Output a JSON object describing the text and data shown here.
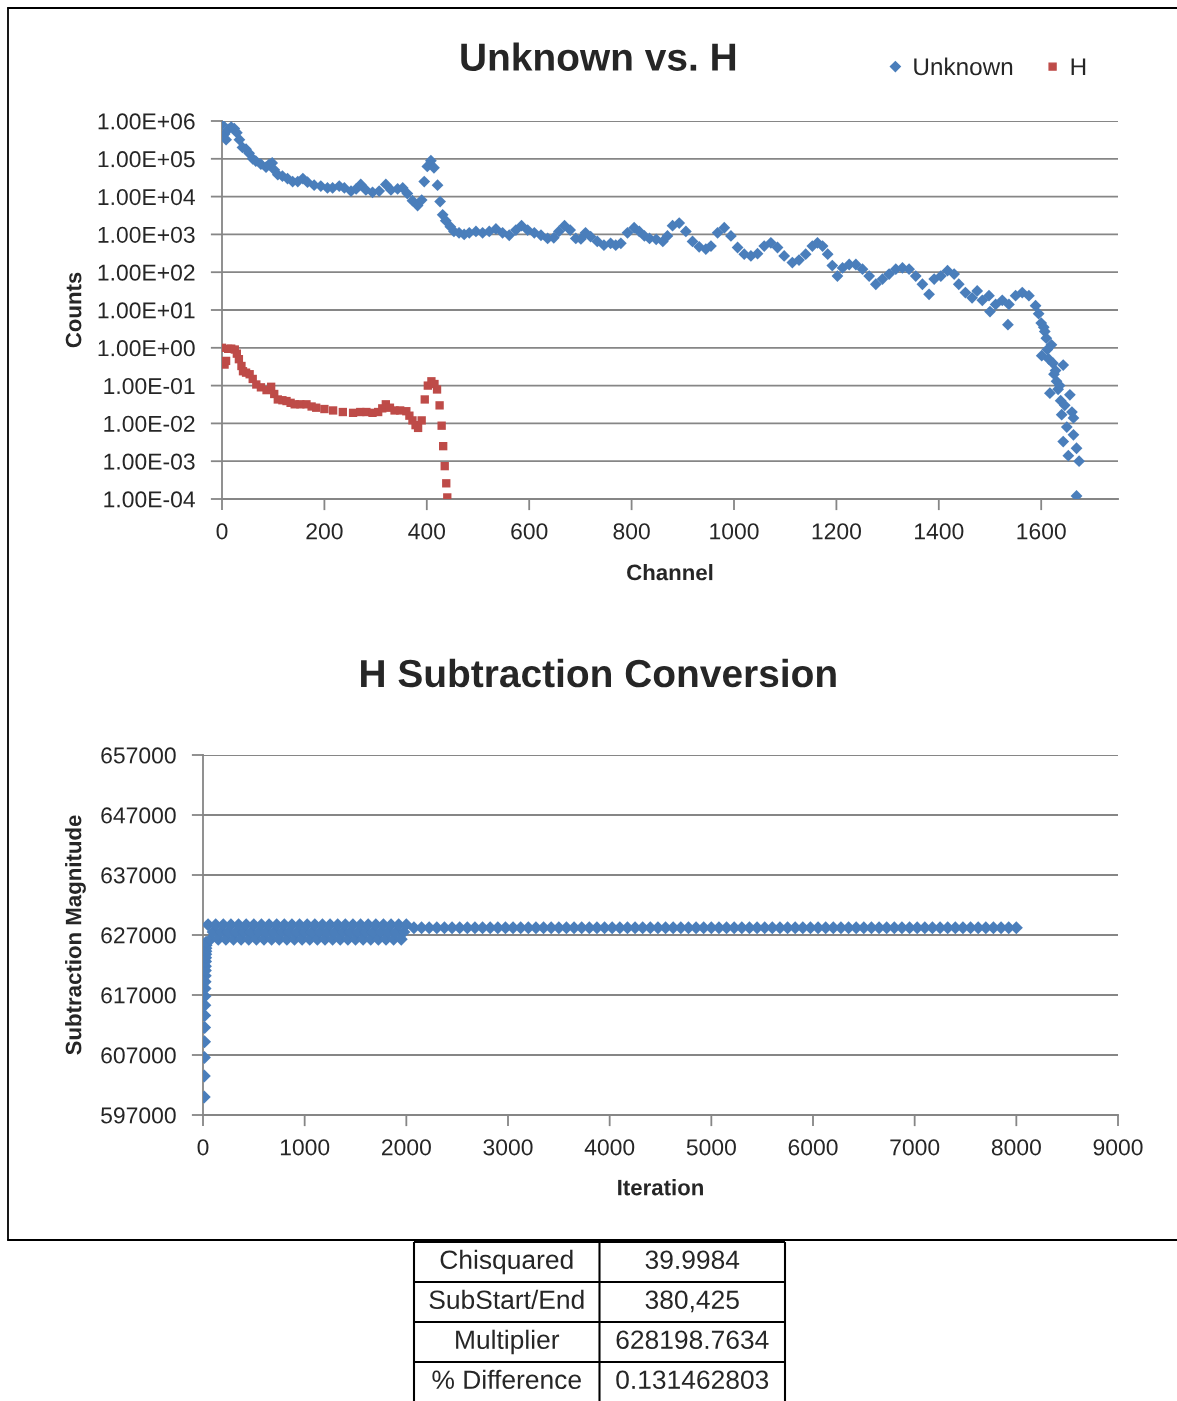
{
  "chart_data": [
    {
      "type": "scatter",
      "title": "Unknown vs. H",
      "xlabel": "Channel",
      "ylabel": "Counts",
      "log": "y",
      "grid": "y",
      "legend": "top right",
      "xlim": [
        0,
        1750
      ],
      "xticks": [
        0,
        200,
        400,
        600,
        800,
        1000,
        1200,
        1400,
        1600
      ],
      "ylim": [
        0.0001,
        1000000
      ],
      "yticks": [
        {
          "value": 1000000,
          "label": "1.00E+06"
        },
        {
          "value": 100000,
          "label": "1.00E+05"
        },
        {
          "value": 10000,
          "label": "1.00E+04"
        },
        {
          "value": 1000,
          "label": "1.00E+03"
        },
        {
          "value": 100,
          "label": "1.00E+02"
        },
        {
          "value": 10,
          "label": "1.00E+01"
        },
        {
          "value": 1,
          "label": "1.00E+00"
        },
        {
          "value": 0.1,
          "label": "1.00E-01"
        },
        {
          "value": 0.01,
          "label": "1.00E-02"
        },
        {
          "value": 0.001,
          "label": "1.00E-03"
        },
        {
          "value": 0.0001,
          "label": "1.00E-04"
        }
      ],
      "series": [
        {
          "name": "Unknown",
          "color": "#4a7ebb",
          "marker": "diamond",
          "x": [
            0,
            5,
            8,
            12,
            18,
            24,
            29,
            34,
            40,
            47,
            53,
            60,
            66,
            76,
            86,
            92,
            98,
            102,
            109,
            118,
            128,
            138,
            148,
            158,
            167,
            180,
            193,
            206,
            216,
            229,
            239,
            252,
            262,
            271,
            281,
            294,
            307,
            320,
            330,
            343,
            353,
            362,
            372,
            382,
            390,
            395,
            401,
            408,
            414,
            421,
            426,
            431,
            437,
            446,
            453,
            463,
            473,
            483,
            496,
            509,
            522,
            535,
            548,
            561,
            574,
            585,
            597,
            610,
            623,
            636,
            648,
            658,
            669,
            680,
            691,
            701,
            710,
            720,
            733,
            746,
            759,
            769,
            779,
            792,
            805,
            815,
            825,
            835,
            848,
            861,
            870,
            880,
            893,
            906,
            919,
            932,
            945,
            955,
            968,
            981,
            994,
            1007,
            1020,
            1033,
            1046,
            1059,
            1072,
            1085,
            1098,
            1114,
            1127,
            1140,
            1153,
            1163,
            1173,
            1183,
            1192,
            1202,
            1212,
            1225,
            1238,
            1251,
            1264,
            1277,
            1290,
            1303,
            1316,
            1329,
            1342,
            1355,
            1368,
            1381,
            1391,
            1404,
            1417,
            1430,
            1439,
            1452,
            1465,
            1475,
            1485,
            1498,
            1500,
            1511,
            1524,
            1535,
            1537,
            1550,
            1563,
            1576,
            1589,
            1595,
            1600,
            1601,
            1605,
            1607,
            1610,
            1612,
            1615,
            1617,
            1620,
            1623,
            1625,
            1628,
            1630,
            1633,
            1636,
            1638,
            1640,
            1643,
            1643,
            1646,
            1650,
            1653,
            1656,
            1660,
            1663,
            1663,
            1669,
            1669,
            1674
          ],
          "values": [
            810000,
            450000,
            320000,
            600000,
            690000,
            630000,
            490000,
            320000,
            200000,
            180000,
            140000,
            100000,
            87000,
            72000,
            60000,
            71000,
            78000,
            51000,
            38000,
            35000,
            30000,
            25000,
            25000,
            30000,
            24000,
            20000,
            19000,
            17000,
            17000,
            19000,
            17000,
            14000,
            16000,
            21000,
            15000,
            13000,
            14000,
            21000,
            15000,
            16000,
            17000,
            12000,
            7800,
            5800,
            8100,
            25000,
            63000,
            89000,
            58000,
            20000,
            7400,
            3300,
            2300,
            1600,
            1200,
            1100,
            1000,
            1100,
            1200,
            1100,
            1200,
            1400,
            1100,
            950,
            1300,
            1700,
            1300,
            1100,
            950,
            780,
            810,
            1200,
            1700,
            1300,
            780,
            760,
            1100,
            870,
            650,
            520,
            580,
            520,
            580,
            1100,
            1500,
            1200,
            910,
            780,
            740,
            650,
            910,
            1700,
            2000,
            1200,
            650,
            470,
            410,
            490,
            1100,
            1500,
            910,
            450,
            300,
            270,
            310,
            490,
            600,
            450,
            270,
            180,
            210,
            300,
            490,
            600,
            490,
            300,
            150,
            79,
            130,
            160,
            160,
            120,
            79,
            48,
            66,
            89,
            120,
            130,
            120,
            79,
            48,
            26,
            66,
            79,
            110,
            89,
            48,
            29,
            21,
            32,
            18,
            24,
            9.1,
            14,
            18,
            4.1,
            14,
            24,
            29,
            24,
            13,
            8,
            4.5,
            0.62,
            3.5,
            2.7,
            1.8,
            0.9,
            0.5,
            0.063,
            1.2,
            0.39,
            0.2,
            0.25,
            0.13,
            0.08,
            0.1,
            0.04,
            0.017,
            0.35,
            0.0033,
            0.03,
            0.008,
            0.0014,
            0.057,
            0.02,
            0.014,
            0.005,
            0.0022,
            0.00012,
            0.001
          ]
        },
        {
          "name": "H",
          "color": "#be4b48",
          "marker": "square",
          "x": [
            0,
            5,
            8,
            12,
            18,
            25,
            29,
            33,
            38,
            41,
            47,
            54,
            60,
            67,
            76,
            87,
            96,
            102,
            109,
            118,
            126,
            134,
            142,
            153,
            165,
            175,
            184,
            200,
            217,
            236,
            256,
            270,
            282,
            294,
            305,
            313,
            320,
            328,
            337,
            348,
            360,
            366,
            372,
            378,
            383,
            390,
            396,
            402,
            409,
            415,
            420,
            425,
            429,
            432,
            435,
            438,
            440
          ],
          "values": [
            1.0,
            0.36,
            0.45,
            0.94,
            0.95,
            0.9,
            0.7,
            0.5,
            0.33,
            0.24,
            0.22,
            0.2,
            0.15,
            0.107,
            0.09,
            0.076,
            0.093,
            0.06,
            0.043,
            0.041,
            0.039,
            0.035,
            0.032,
            0.032,
            0.032,
            0.028,
            0.026,
            0.024,
            0.022,
            0.02,
            0.019,
            0.02,
            0.02,
            0.019,
            0.02,
            0.025,
            0.032,
            0.026,
            0.022,
            0.022,
            0.021,
            0.016,
            0.012,
            0.009,
            0.0076,
            0.012,
            0.043,
            0.1,
            0.13,
            0.11,
            0.079,
            0.03,
            0.0087,
            0.0025,
            0.00074,
            0.00026,
            0.00011
          ]
        }
      ]
    },
    {
      "type": "scatter",
      "title": "H Subtraction Conversion",
      "xlabel": "Iteration",
      "ylabel": "Subtraction Magnitude",
      "grid": "y",
      "xlim": [
        0,
        9000
      ],
      "xticks": [
        0,
        1000,
        2000,
        3000,
        4000,
        5000,
        6000,
        7000,
        8000,
        9000
      ],
      "ylim": [
        597000,
        657000
      ],
      "yticks": [
        597000,
        607000,
        617000,
        627000,
        637000,
        647000,
        657000
      ],
      "series": [
        {
          "color": "#4a7ebb",
          "marker": "diamond",
          "x": [
            12,
            13,
            14,
            15,
            16,
            17,
            18,
            19,
            20,
            21,
            22,
            23,
            24,
            25,
            26,
            27,
            28,
            29,
            30,
            31,
            50,
            75,
            100,
            125,
            150,
            175,
            200,
            225,
            250,
            275,
            300,
            325,
            350,
            375,
            400,
            425,
            450,
            475,
            500,
            525,
            550,
            575,
            600,
            625,
            650,
            675,
            700,
            725,
            750,
            775,
            800,
            825,
            850,
            875,
            900,
            925,
            950,
            975,
            1000,
            1025,
            1050,
            1075,
            1100,
            1125,
            1150,
            1175,
            1200,
            1225,
            1250,
            1275,
            1300,
            1325,
            1350,
            1375,
            1400,
            1425,
            1450,
            1475,
            1500,
            1525,
            1550,
            1575,
            1600,
            1625,
            1650,
            1675,
            1700,
            1725,
            1750,
            1775,
            1800,
            1825,
            1850,
            1875,
            1900,
            1925,
            1950,
            1975,
            2000,
            2075,
            2150,
            2225,
            2300,
            2375,
            2450,
            2525,
            2600,
            2675,
            2750,
            2825,
            2900,
            2975,
            3050,
            3125,
            3200,
            3275,
            3350,
            3425,
            3500,
            3575,
            3650,
            3725,
            3800,
            3875,
            3950,
            4025,
            4100,
            4175,
            4250,
            4325,
            4400,
            4475,
            4550,
            4625,
            4700,
            4775,
            4850,
            4925,
            5000,
            5075,
            5150,
            5225,
            5300,
            5375,
            5450,
            5525,
            5600,
            5675,
            5750,
            5825,
            5900,
            5975,
            6050,
            6125,
            6200,
            6275,
            6350,
            6425,
            6500,
            6575,
            6650,
            6725,
            6800,
            6875,
            6950,
            7025,
            7100,
            7175,
            7250,
            7325,
            7400,
            7475,
            7550,
            7625,
            7700,
            7775,
            7850,
            7925,
            8000
          ],
          "values": [
            600000,
            603500,
            606600,
            609200,
            611600,
            613600,
            615300,
            616800,
            618100,
            619200,
            620200,
            621100,
            621800,
            622600,
            623200,
            623800,
            624300,
            624800,
            625300,
            625800,
            628700,
            626300,
            627500,
            628700,
            626300,
            627500,
            628700,
            626300,
            627500,
            628700,
            626300,
            627500,
            628700,
            626300,
            627500,
            628700,
            626300,
            627500,
            628700,
            626300,
            627500,
            628700,
            626300,
            627500,
            628700,
            626300,
            627500,
            628700,
            626300,
            627500,
            628700,
            626300,
            627500,
            628700,
            626300,
            627500,
            628700,
            626300,
            627500,
            628700,
            626300,
            627500,
            628700,
            626300,
            627500,
            628700,
            626300,
            627500,
            628700,
            626300,
            627500,
            628700,
            626300,
            627500,
            628700,
            626300,
            627500,
            628700,
            626300,
            627500,
            628700,
            626300,
            627500,
            628700,
            626300,
            627500,
            628700,
            626300,
            627500,
            628700,
            626300,
            627500,
            628700,
            626300,
            627500,
            628700,
            626300,
            627500,
            628700,
            628200,
            628200,
            628200,
            628200,
            628200,
            628200,
            628200,
            628200,
            628200,
            628200,
            628200,
            628200,
            628200,
            628200,
            628200,
            628200,
            628200,
            628200,
            628200,
            628200,
            628200,
            628200,
            628200,
            628200,
            628200,
            628200,
            628200,
            628200,
            628200,
            628200,
            628200,
            628200,
            628200,
            628200,
            628200,
            628200,
            628200,
            628200,
            628200,
            628200,
            628200,
            628200,
            628200,
            628200,
            628200,
            628200,
            628200,
            628200,
            628200,
            628200,
            628200,
            628200,
            628200,
            628200,
            628200,
            628200,
            628200,
            628200,
            628200,
            628200,
            628200,
            628200,
            628200,
            628200,
            628200,
            628200,
            628200,
            628200,
            628200,
            628200,
            628200,
            628200,
            628200,
            628200,
            628200,
            628200,
            628200,
            628200,
            628200,
            628200
          ]
        }
      ]
    },
    {
      "type": "other",
      "annotations": [
        "Chisquared",
        "39.9984",
        "SubStart/End",
        "380,425",
        "Multiplier",
        "628198.7634",
        "% Difference",
        "0.131462803"
      ]
    }
  ]
}
